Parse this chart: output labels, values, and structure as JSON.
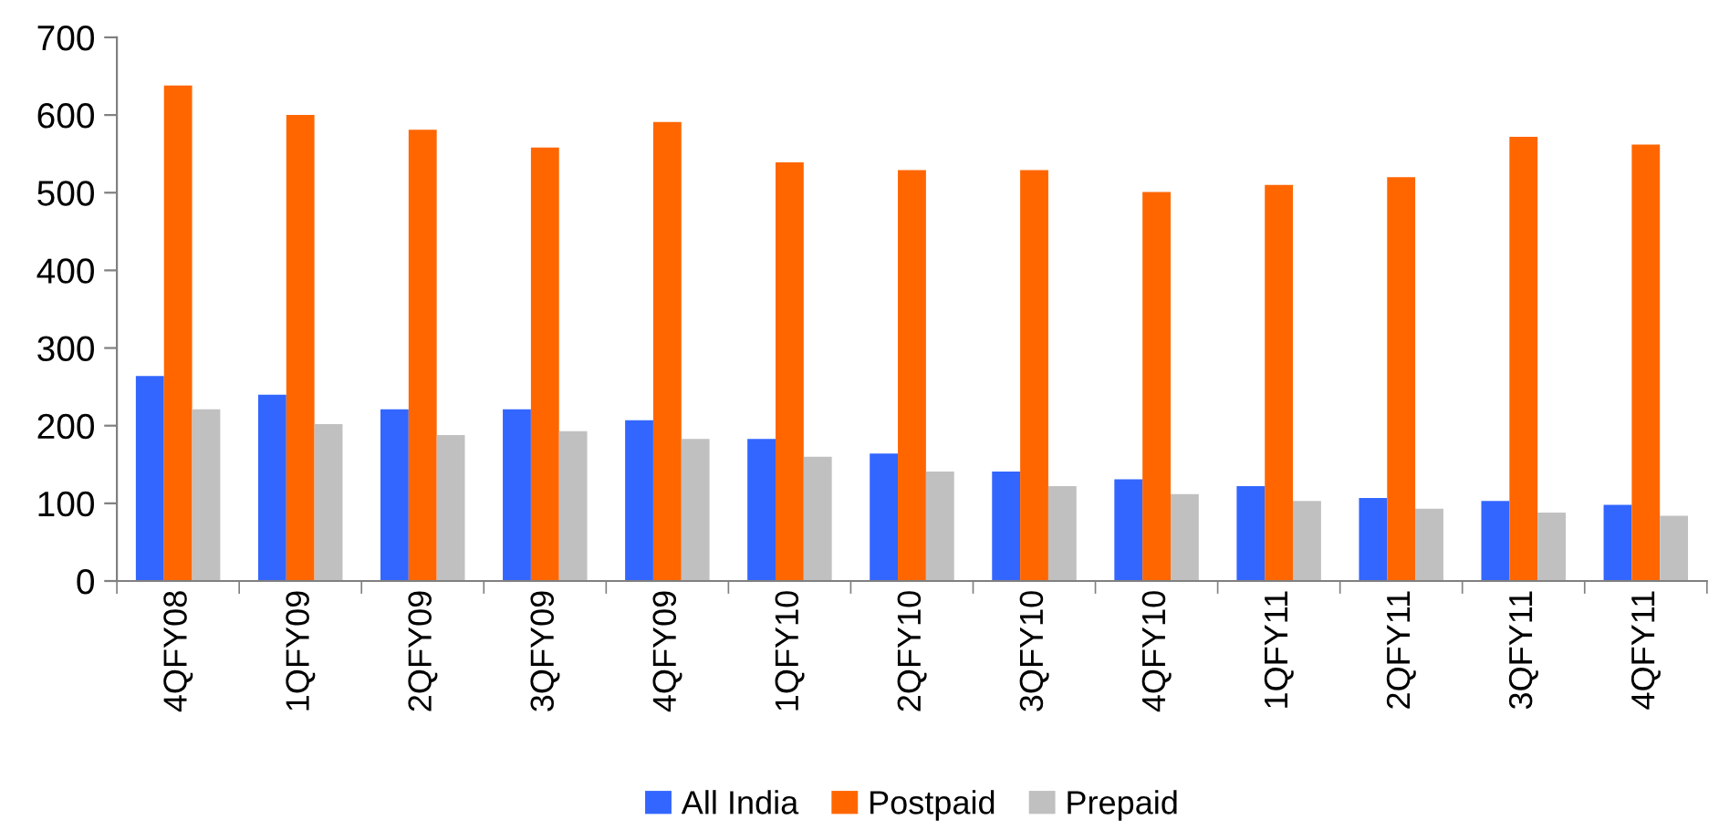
{
  "chart_data": {
    "type": "bar",
    "categories": [
      "4QFY08",
      "1QFY09",
      "2QFY09",
      "3QFY09",
      "4QFY09",
      "1QFY10",
      "2QFY10",
      "3QFY10",
      "4QFY10",
      "1QFY11",
      "2QFY11",
      "3QFY11",
      "4QFY11"
    ],
    "series": [
      {
        "name": "All India",
        "color": "#3366ff",
        "values": [
          264,
          240,
          221,
          221,
          207,
          183,
          164,
          141,
          131,
          122,
          107,
          103,
          98
        ]
      },
      {
        "name": "Postpaid",
        "color": "#ff6600",
        "values": [
          638,
          600,
          581,
          558,
          591,
          539,
          529,
          529,
          501,
          510,
          520,
          572,
          562
        ]
      },
      {
        "name": "Prepaid",
        "color": "#c0c0c0",
        "values": [
          221,
          202,
          188,
          193,
          183,
          160,
          141,
          122,
          112,
          103,
          93,
          88,
          84
        ]
      }
    ],
    "ylim": [
      0,
      700
    ],
    "yticks": [
      0,
      100,
      200,
      300,
      400,
      500,
      600,
      700
    ],
    "grid": false,
    "legend": "bottom"
  }
}
